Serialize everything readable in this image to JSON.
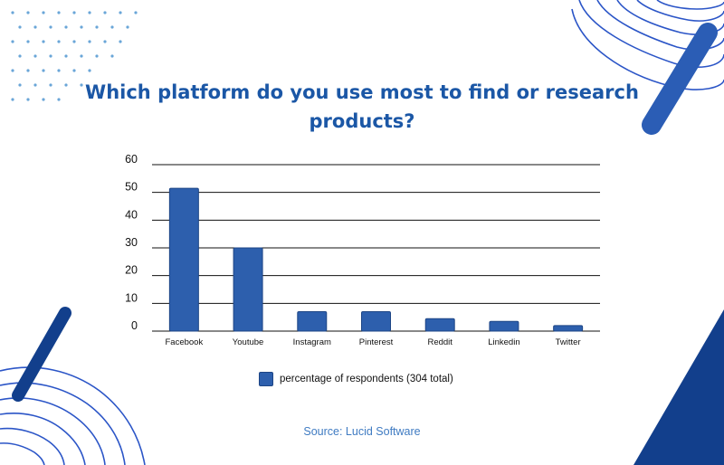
{
  "title": "Which platform do you use most to find or research products?",
  "source": "Source: Lucid Software",
  "colors": {
    "bar": "#2d5fad",
    "bar_stroke": "#1d4585",
    "title": "#1b57a6",
    "decor_dark": "#123f8c",
    "decor_line": "#2b55c7",
    "dots": "#6aa6d8"
  },
  "chart_data": {
    "type": "bar",
    "title": "Which platform do you use most to find or research products?",
    "categories": [
      "Facebook",
      "Youtube",
      "Instagram",
      "Pinterest",
      "Reddit",
      "Linkedin",
      "Twitter"
    ],
    "series": [
      {
        "name": "percentage of respondents (304 total)",
        "values": [
          51.5,
          30,
          7,
          7,
          4.5,
          3.5,
          2
        ]
      }
    ],
    "yticks": [
      0,
      10,
      20,
      30,
      40,
      50,
      60
    ],
    "ylim": [
      0,
      60
    ],
    "xlabel": "",
    "ylabel": "",
    "grid": true,
    "legend_position": "bottom"
  }
}
